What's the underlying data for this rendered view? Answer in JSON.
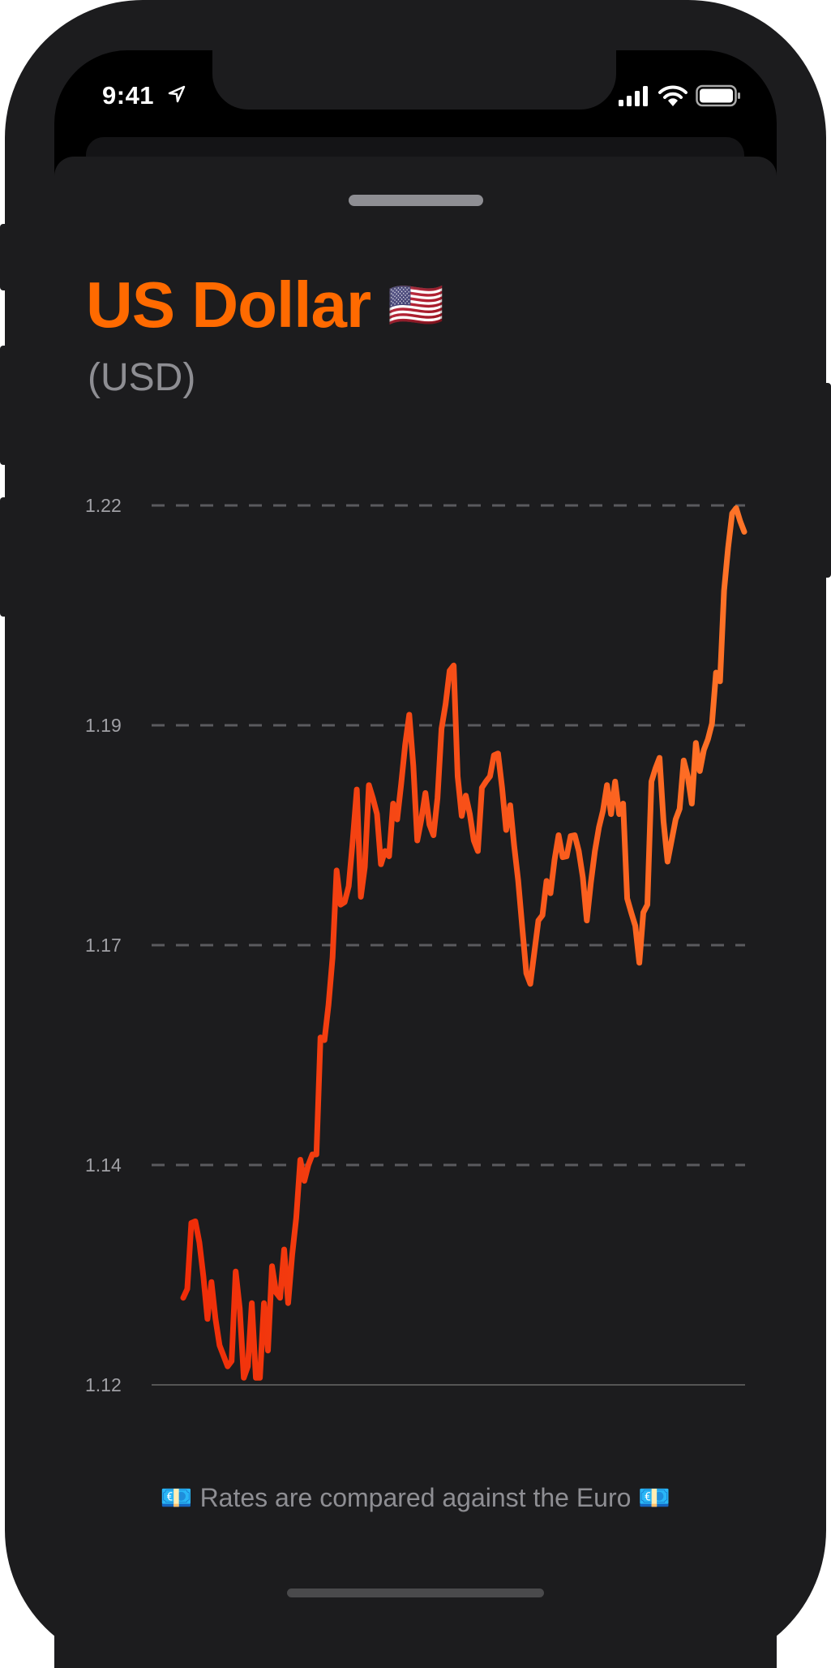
{
  "status_bar": {
    "time": "9:41",
    "icons": [
      "location-arrow-icon",
      "cellular-signal-icon",
      "wifi-icon",
      "battery-icon"
    ]
  },
  "currency": {
    "name": "US Dollar",
    "flag": "🇺🇸",
    "code": "(USD)"
  },
  "colors": {
    "accent": "#ff6a00",
    "line_start": "#f02c08",
    "line_end": "#ff7428",
    "background": "#1c1c1e",
    "secondary_text": "#8e8e93"
  },
  "chart_data": {
    "type": "line",
    "title": "",
    "xlabel": "",
    "ylabel": "",
    "ylim": [
      1.12,
      1.22
    ],
    "y_ticks": [
      "1.22",
      "1.19",
      "1.17",
      "1.14",
      "1.12"
    ],
    "y_tick_values": [
      1.22,
      1.195,
      1.17,
      1.145,
      1.12
    ],
    "grid": "horizontal dashed",
    "values": [
      1.1299,
      1.1309,
      1.1384,
      1.1386,
      1.1362,
      1.1323,
      1.1275,
      1.1317,
      1.1275,
      1.1245,
      1.1233,
      1.1221,
      1.1227,
      1.1329,
      1.1287,
      1.1208,
      1.1221,
      1.1293,
      1.1208,
      1.1208,
      1.1293,
      1.1239,
      1.1335,
      1.1305,
      1.1299,
      1.1354,
      1.1293,
      1.1348,
      1.139,
      1.1456,
      1.1432,
      1.145,
      1.1462,
      1.1462,
      1.1595,
      1.1592,
      1.1632,
      1.1686,
      1.1785,
      1.1746,
      1.1749,
      1.1767,
      1.1819,
      1.1877,
      1.1755,
      1.1789,
      1.1882,
      1.1867,
      1.1849,
      1.1792,
      1.1807,
      1.1801,
      1.1861,
      1.1843,
      1.1883,
      1.1928,
      1.1962,
      1.1904,
      1.1819,
      1.1843,
      1.1873,
      1.1837,
      1.1825,
      1.1867,
      1.1946,
      1.1974,
      1.2012,
      1.2018,
      1.1892,
      1.1847,
      1.187,
      1.1849,
      1.1819,
      1.1807,
      1.1879,
      1.1886,
      1.1892,
      1.1916,
      1.1918,
      1.1879,
      1.1831,
      1.1859,
      1.1813,
      1.1773,
      1.172,
      1.1668,
      1.1656,
      1.1692,
      1.1728,
      1.1734,
      1.1773,
      1.1759,
      1.1797,
      1.1825,
      1.18,
      1.1801,
      1.1824,
      1.1825,
      1.1807,
      1.1777,
      1.1728,
      1.1771,
      1.1807,
      1.1834,
      1.1853,
      1.1882,
      1.1849,
      1.1886,
      1.1849,
      1.1861,
      1.1753,
      1.1737,
      1.1722,
      1.168,
      1.1737,
      1.1746,
      1.1886,
      1.1901,
      1.1913,
      1.1841,
      1.1795,
      1.1819,
      1.1843,
      1.1855,
      1.191,
      1.1892,
      1.1861,
      1.193,
      1.1898,
      1.1922,
      1.1934,
      1.1952,
      1.201,
      1.2,
      1.2103,
      1.2152,
      1.2191,
      1.2197,
      1.2182,
      1.217
    ]
  },
  "footer": {
    "left_emoji": "💶",
    "text": "Rates are compared against the Euro",
    "right_emoji": "💶"
  }
}
